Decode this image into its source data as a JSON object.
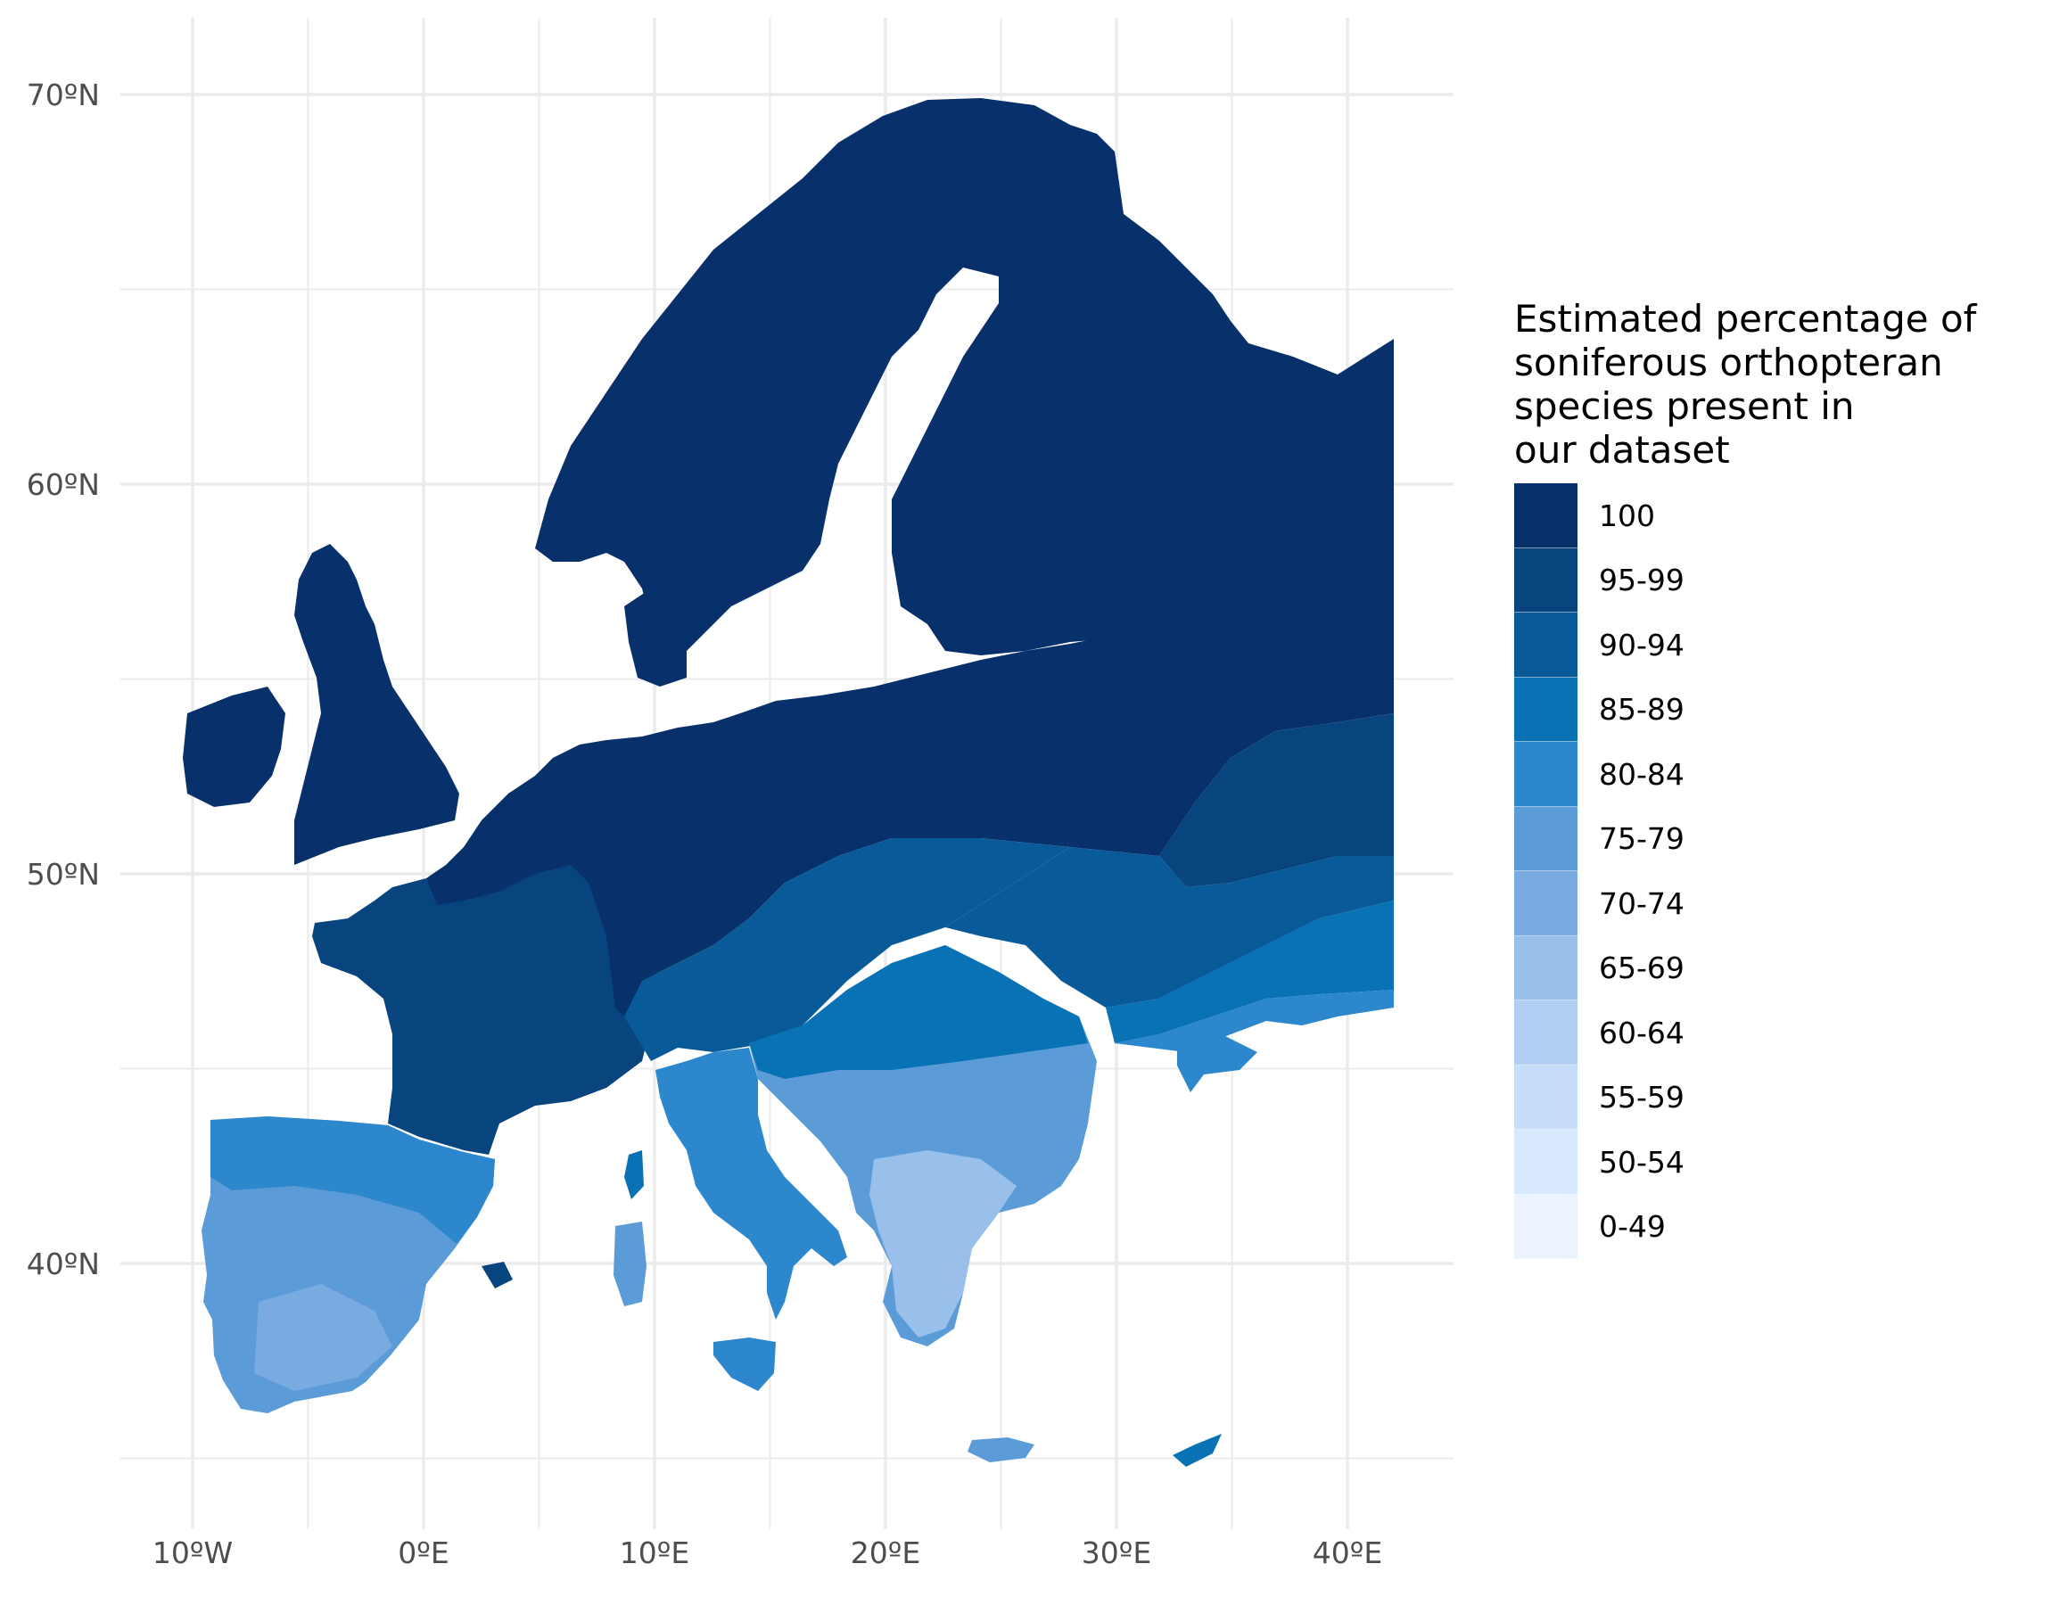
{
  "map": {
    "axes": {
      "latitude_ticks": [
        {
          "value": 70,
          "label": "70ºN"
        },
        {
          "value": 60,
          "label": "60ºN"
        },
        {
          "value": 50,
          "label": "50ºN"
        },
        {
          "value": 40,
          "label": "40ºN"
        }
      ],
      "longitude_ticks": [
        {
          "value": -10,
          "label": "10ºW"
        },
        {
          "value": 0,
          "label": "0ºE"
        },
        {
          "value": 10,
          "label": "10ºE"
        },
        {
          "value": 20,
          "label": "20ºE"
        },
        {
          "value": 30,
          "label": "30ºE"
        },
        {
          "value": 40,
          "label": "40ºE"
        }
      ],
      "lon_range": [
        -13,
        45
      ],
      "lat_range": [
        32.5,
        72
      ],
      "grid": true
    },
    "legend": {
      "title": "Estimated percentage of\nsoniferous orthopteran\nspecies present in\nour dataset",
      "placement": "right",
      "classes": [
        {
          "label": "100",
          "color": "#08306b"
        },
        {
          "label": "95-99",
          "color": "#08457f"
        },
        {
          "label": "90-94",
          "color": "#085a99"
        },
        {
          "label": "85-89",
          "color": "#0872b4"
        },
        {
          "label": "80-84",
          "color": "#2d87cc"
        },
        {
          "label": "75-79",
          "color": "#5b9bd7"
        },
        {
          "label": "70-74",
          "color": "#7aabe0"
        },
        {
          "label": "65-69",
          "color": "#99bfeb"
        },
        {
          "label": "60-64",
          "color": "#b1d0f3"
        },
        {
          "label": "55-59",
          "color": "#c6defa"
        },
        {
          "label": "50-54",
          "color": "#d9e9fd"
        },
        {
          "label": "0-49",
          "color": "#eaf3fe"
        }
      ]
    }
  }
}
